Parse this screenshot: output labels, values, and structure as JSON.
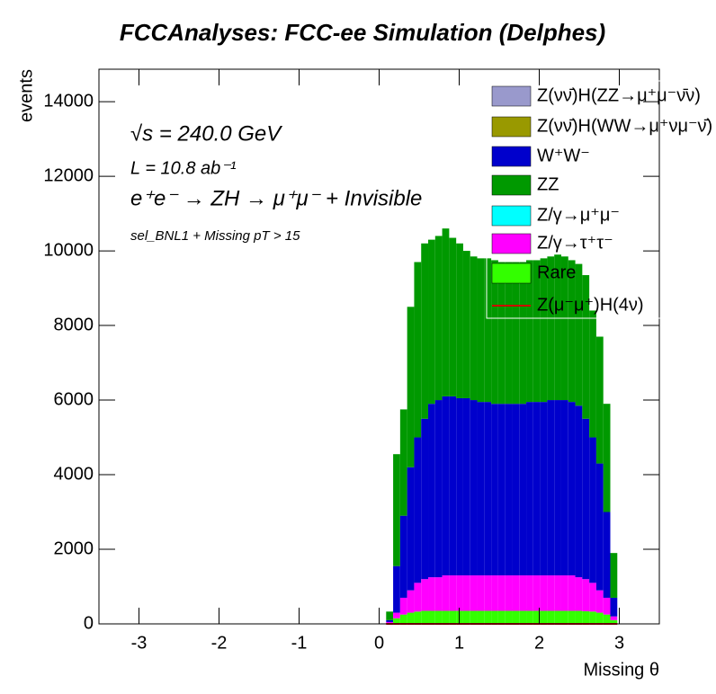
{
  "chart_data": {
    "type": "stacked_histogram",
    "title": "FCCAnalyses: FCC-ee Simulation (Delphes)",
    "annotations": [
      "√s = 240.0 GeV",
      "L = 10.8 ab⁻¹",
      "e⁺e⁻ → ZH → μ⁺μ⁻ + Invisible",
      "sel_BNL1 + Missing pT > 15"
    ],
    "x_label": "Missing θ",
    "y_label": "events",
    "xlim": [
      -3.5,
      3.5
    ],
    "ylim": [
      0,
      14870
    ],
    "xticks": [
      -3,
      -2,
      -1,
      0,
      1,
      2,
      3
    ],
    "yticks": [
      0,
      2000,
      4000,
      6000,
      8000,
      10000,
      12000,
      14000
    ],
    "legend": "top-right",
    "bins": [
      0.0875,
      0.175,
      0.2625,
      0.35,
      0.4375,
      0.525,
      0.6125,
      0.7,
      0.7875,
      0.875,
      0.9625,
      1.05,
      1.1375,
      1.225,
      1.3125,
      1.4,
      1.4875,
      1.575,
      1.6625,
      1.75,
      1.8375,
      1.925,
      2.0125,
      2.1,
      2.1875,
      2.275,
      2.3625,
      2.45,
      2.5375,
      2.625,
      2.7125,
      2.8,
      2.8875,
      2.975
    ],
    "series": [
      {
        "name": "Z(νν̄)H(ZZ→μ⁺μ⁻ν̄ν)",
        "color": "#9999cc",
        "values": [
          0,
          0,
          0,
          0,
          0,
          0,
          0,
          0,
          0,
          0,
          0,
          0,
          0,
          0,
          0,
          0,
          0,
          0,
          0,
          0,
          0,
          0,
          0,
          0,
          0,
          0,
          0,
          0,
          0,
          0,
          0,
          0,
          0
        ]
      },
      {
        "name": "Z(νν̄)H(WW→μ⁺νμ⁻ν̄)",
        "color": "#999900",
        "values": [
          0,
          0,
          0,
          0,
          0,
          0,
          0,
          0,
          0,
          0,
          0,
          0,
          0,
          0,
          0,
          0,
          0,
          0,
          0,
          0,
          0,
          0,
          0,
          0,
          0,
          0,
          0,
          0,
          0,
          0,
          0,
          0,
          0
        ]
      },
      {
        "name": "W⁺W⁻",
        "color": "#0000cc",
        "values": [
          50,
          1250,
          2200,
          3300,
          3900,
          4300,
          4650,
          4750,
          4800,
          4800,
          4750,
          4750,
          4700,
          4650,
          4650,
          4600,
          4600,
          4600,
          4600,
          4600,
          4650,
          4650,
          4650,
          4700,
          4700,
          4700,
          4650,
          4600,
          4300,
          3900,
          3400,
          2300,
          500
        ]
      },
      {
        "name": "ZZ",
        "color": "#009900",
        "values": [
          230,
          3000,
          2850,
          4300,
          4700,
          4700,
          4400,
          4400,
          4500,
          4250,
          4150,
          3950,
          3850,
          3850,
          3850,
          3850,
          3800,
          3800,
          3800,
          3800,
          3800,
          3800,
          3850,
          3850,
          3900,
          3850,
          3800,
          3800,
          3850,
          3400,
          3400,
          2900,
          1200
        ]
      },
      {
        "name": "Z/γ→μ⁺μ⁻",
        "color": "#00ffff",
        "values": [
          0,
          0,
          0,
          0,
          0,
          0,
          0,
          0,
          0,
          0,
          0,
          0,
          0,
          0,
          0,
          0,
          0,
          0,
          0,
          0,
          0,
          0,
          0,
          0,
          0,
          0,
          0,
          0,
          0,
          0,
          0,
          0,
          0
        ]
      },
      {
        "name": "Z/γ→τ⁺τ⁻",
        "color": "#ff00ff",
        "values": [
          30,
          150,
          450,
          600,
          770,
          850,
          900,
          900,
          950,
          950,
          950,
          950,
          950,
          950,
          950,
          950,
          950,
          950,
          950,
          950,
          950,
          950,
          950,
          950,
          950,
          950,
          950,
          900,
          860,
          770,
          600,
          450,
          100
        ]
      },
      {
        "name": "Rare",
        "color": "#33ff00",
        "values": [
          20,
          150,
          250,
          300,
          330,
          350,
          350,
          350,
          350,
          350,
          350,
          350,
          350,
          350,
          350,
          350,
          350,
          350,
          350,
          350,
          350,
          350,
          350,
          350,
          350,
          350,
          350,
          350,
          340,
          330,
          300,
          250,
          100
        ]
      },
      {
        "name": "Z(μ⁻μ⁺)H(4ν)",
        "color": "#cc0000",
        "line": true,
        "values": [
          0,
          0,
          0,
          0,
          0,
          0,
          0,
          0,
          0,
          0,
          0,
          0,
          0,
          0,
          0,
          0,
          0,
          0,
          0,
          0,
          0,
          0,
          0,
          0,
          0,
          0,
          0,
          0,
          0,
          0,
          0,
          0,
          0
        ]
      }
    ]
  }
}
